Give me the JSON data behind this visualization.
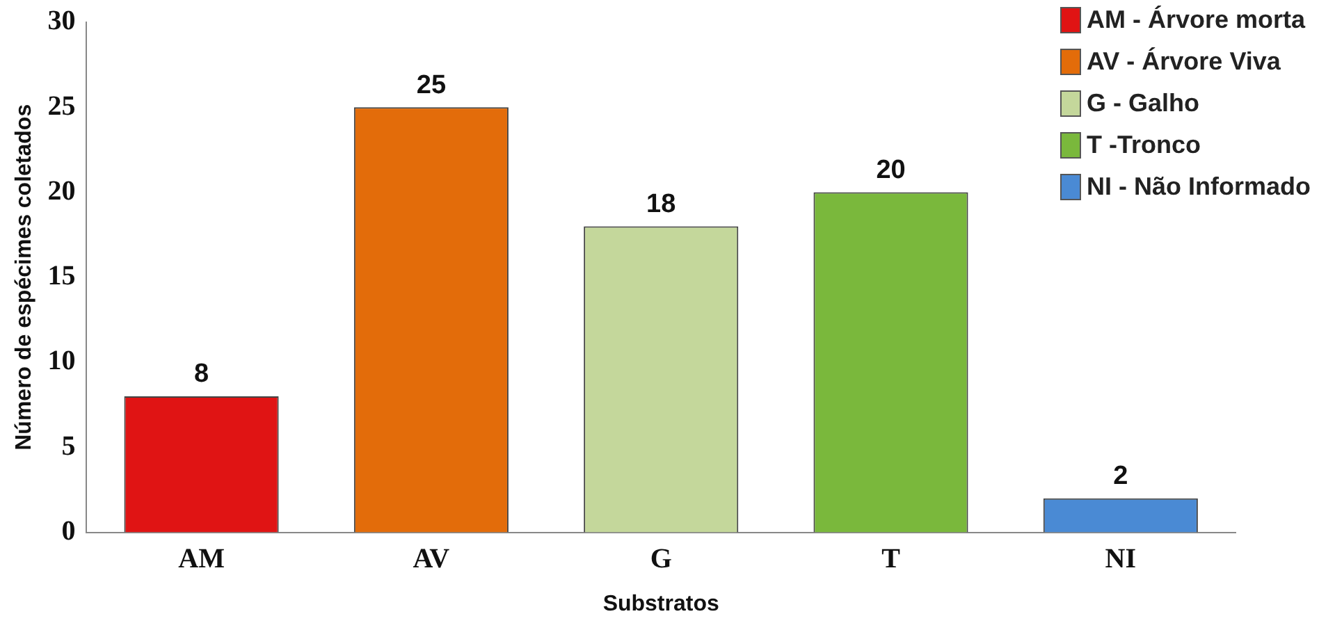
{
  "chart_data": {
    "type": "bar",
    "xlabel": "Substratos",
    "ylabel": "Número de espécimes coletados",
    "categories": [
      "AM",
      "AV",
      "G",
      "T",
      "NI"
    ],
    "series": [
      {
        "name": "AM - Árvore morta",
        "color": "#e01414",
        "values": [
          8,
          null,
          null,
          null,
          null
        ]
      },
      {
        "name": "AV - Árvore Viva",
        "color": "#e36c0a",
        "values": [
          null,
          25,
          null,
          null,
          null
        ]
      },
      {
        "name": "G - Galho",
        "color": "#c4d79b",
        "values": [
          null,
          null,
          18,
          null,
          null
        ]
      },
      {
        "name": "T -Tronco",
        "color": "#7ab83c",
        "values": [
          null,
          null,
          null,
          20,
          null
        ]
      },
      {
        "name": "NI - Não Informado",
        "color": "#4a8ad4",
        "values": [
          null,
          null,
          null,
          null,
          2
        ]
      }
    ],
    "ylim": [
      0,
      30
    ],
    "yticks": [
      0,
      5,
      10,
      15,
      20,
      25,
      30
    ],
    "grid": false,
    "legend": "top right",
    "data_labels": true
  }
}
